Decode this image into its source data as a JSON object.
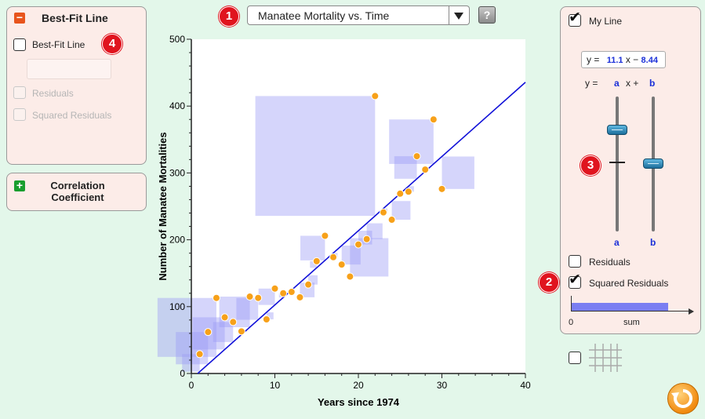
{
  "dataset_select": {
    "value": "Manatee Mortality vs. Time",
    "badge": "1",
    "help": "?"
  },
  "left": {
    "bestfit_panel": {
      "title": "Best-Fit Line",
      "toggle": "−",
      "checkbox_label": "Best-Fit Line",
      "residuals_label": "Residuals",
      "squared_label": "Squared Residuals",
      "badge": "4"
    },
    "correlation_panel": {
      "line1": "Correlation",
      "line2": "Coefficient",
      "toggle": "+"
    }
  },
  "right": {
    "my_line_label": "My Line",
    "equation": {
      "prefix": "y =",
      "a": "11.1",
      "mid": "x −",
      "b": "8.44"
    },
    "form": {
      "y": "y =",
      "a": "a",
      "xplus": "x +",
      "b": "b"
    },
    "slider_a_label": "a",
    "slider_b_label": "b",
    "slider_badge": "3",
    "residuals_label": "Residuals",
    "squared_label": "Squared Residuals",
    "squared_badge": "2",
    "sum_zero": "0",
    "sum_label": "sum",
    "sum_level": 0.82
  },
  "chart_data": {
    "type": "scatter",
    "xlabel": "Years since 1974",
    "ylabel": "Number of Manatee Mortalities",
    "xlim": [
      0,
      40
    ],
    "ylim": [
      0,
      500
    ],
    "xticks": [
      0,
      10,
      20,
      30,
      40
    ],
    "yticks": [
      0,
      100,
      200,
      300,
      400,
      500
    ],
    "line": {
      "a": 11.1,
      "b": -8.44
    },
    "points": [
      [
        1,
        29
      ],
      [
        2,
        62
      ],
      [
        3,
        113
      ],
      [
        4,
        84
      ],
      [
        5,
        77
      ],
      [
        6,
        63
      ],
      [
        7,
        115
      ],
      [
        8,
        113
      ],
      [
        9,
        81
      ],
      [
        10,
        127
      ],
      [
        11,
        120
      ],
      [
        12,
        122
      ],
      [
        13,
        114
      ],
      [
        14,
        133
      ],
      [
        15,
        168
      ],
      [
        16,
        206
      ],
      [
        17,
        174
      ],
      [
        18,
        163
      ],
      [
        19,
        145
      ],
      [
        20,
        193
      ],
      [
        21,
        201
      ],
      [
        22,
        415
      ],
      [
        23,
        241
      ],
      [
        24,
        230
      ],
      [
        25,
        269
      ],
      [
        26,
        272
      ],
      [
        27,
        325
      ],
      [
        28,
        305
      ],
      [
        29,
        380
      ],
      [
        30,
        276
      ]
    ]
  }
}
